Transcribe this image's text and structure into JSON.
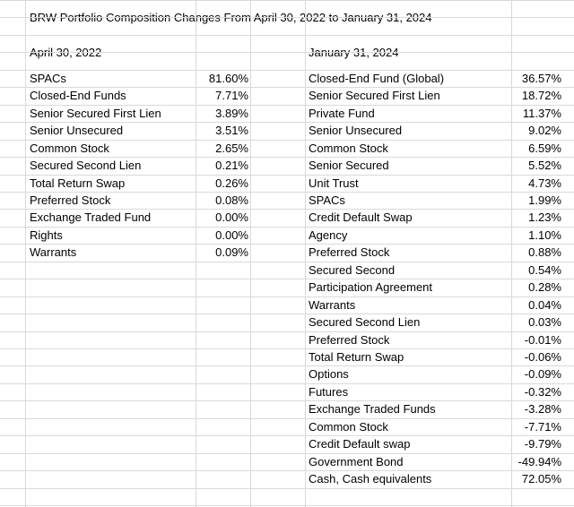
{
  "title": "BRW Portfolio Composition Changes From April 30, 2022 to January 31, 2024",
  "left_header": "April 30, 2022",
  "right_header": "January 31, 2024",
  "left_rows": [
    {
      "label": "SPACs",
      "value": "81.60%"
    },
    {
      "label": "Closed-End Funds",
      "value": "7.71%"
    },
    {
      "label": "Senior Secured First Lien",
      "value": "3.89%"
    },
    {
      "label": "Senior Unsecured",
      "value": "3.51%"
    },
    {
      "label": "Common Stock",
      "value": "2.65%"
    },
    {
      "label": "Secured Second Lien",
      "value": "0.21%"
    },
    {
      "label": "Total Return Swap",
      "value": "0.26%"
    },
    {
      "label": "Preferred Stock",
      "value": "0.08%"
    },
    {
      "label": "Exchange Traded Fund",
      "value": "0.00%"
    },
    {
      "label": "Rights",
      "value": "0.00%"
    },
    {
      "label": "Warrants",
      "value": "0.09%"
    }
  ],
  "right_rows": [
    {
      "label": "Closed-End Fund (Global)",
      "value": "36.57%"
    },
    {
      "label": "Senior Secured First Lien",
      "value": "18.72%"
    },
    {
      "label": "Private Fund",
      "value": "11.37%"
    },
    {
      "label": "Senior Unsecured",
      "value": "9.02%"
    },
    {
      "label": "Common Stock",
      "value": "6.59%"
    },
    {
      "label": "Senior Secured",
      "value": "5.52%"
    },
    {
      "label": "Unit Trust",
      "value": "4.73%"
    },
    {
      "label": "SPACs",
      "value": "1.99%"
    },
    {
      "label": "Credit Default Swap",
      "value": "1.23%"
    },
    {
      "label": "Agency",
      "value": "1.10%"
    },
    {
      "label": "Preferred Stock",
      "value": "0.88%"
    },
    {
      "label": "Secured Second",
      "value": "0.54%"
    },
    {
      "label": "Participation Agreement",
      "value": "0.28%"
    },
    {
      "label": "Warrants",
      "value": "0.04%"
    },
    {
      "label": "Secured Second Lien",
      "value": "0.03%"
    },
    {
      "label": "Preferred Stock",
      "value": "-0.01%"
    },
    {
      "label": "Total Return Swap",
      "value": "-0.06%"
    },
    {
      "label": "Options",
      "value": "-0.09%"
    },
    {
      "label": "Futures",
      "value": "-0.32%"
    },
    {
      "label": "Exchange Traded Funds",
      "value": "-3.28%"
    },
    {
      "label": "Common Stock",
      "value": "-7.71%"
    },
    {
      "label": "Credit Default swap",
      "value": "-9.79%"
    },
    {
      "label": "Government Bond",
      "value": "-49.94%"
    },
    {
      "label": "Cash, Cash equivalents",
      "value": "72.05%"
    }
  ]
}
